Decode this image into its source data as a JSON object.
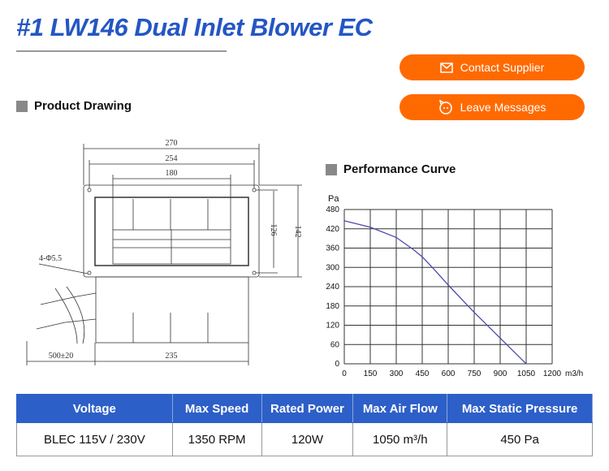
{
  "header": {
    "title": "#1 LW146 Dual Inlet Blower EC"
  },
  "actions": {
    "contact_label": "Contact Supplier",
    "contact_icon": "envelope-icon",
    "message_label": "Leave Messages",
    "message_icon": "chat-face-icon",
    "color": "#ff6a00"
  },
  "drawing": {
    "heading": "Product Drawing",
    "dims": {
      "d270": "270",
      "d254": "254",
      "d180": "180",
      "d126": "126",
      "d142": "142",
      "hole": "4-Φ5.5",
      "cable": "500±20",
      "d235": "235"
    }
  },
  "chart_data": {
    "type": "line",
    "title": "Performance Curve",
    "ylabel": "Pa",
    "xlabel": "m3/h",
    "xlim": [
      0,
      1200
    ],
    "ylim": [
      0,
      480
    ],
    "x_ticks": [
      0,
      150,
      300,
      450,
      600,
      750,
      900,
      1050,
      1200
    ],
    "y_ticks": [
      0,
      60,
      120,
      180,
      240,
      300,
      360,
      420,
      480
    ],
    "grid": true,
    "series": [
      {
        "color": "#4a4aa8",
        "x": [
          0,
          150,
          300,
          400,
          450,
          525,
          600,
          750,
          900,
          1050
        ],
        "y": [
          445,
          425,
          393,
          355,
          333,
          290,
          245,
          160,
          80,
          0
        ]
      }
    ]
  },
  "specs": {
    "headers": [
      "Voltage",
      "Max Speed",
      "Rated Power",
      "Max Air Flow",
      "Max Static Pressure"
    ],
    "values": [
      "BLEC 115V / 230V",
      "1350 RPM",
      "120W",
      "1050 m³/h",
      "450 Pa"
    ],
    "header_color": "#2d5fc8"
  }
}
